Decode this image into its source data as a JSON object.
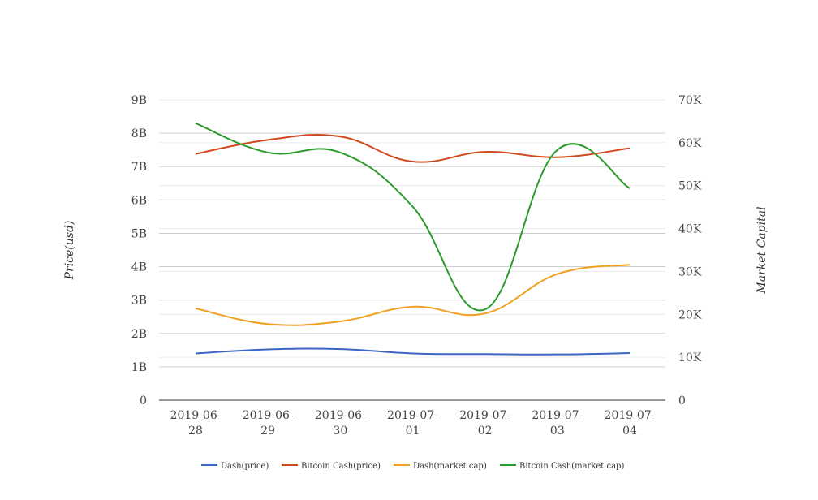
{
  "chart_data": {
    "type": "line",
    "categories": [
      [
        "2019-06-",
        "28"
      ],
      [
        "2019-06-",
        "29"
      ],
      [
        "2019-06-",
        "30"
      ],
      [
        "2019-07-",
        "01"
      ],
      [
        "2019-07-",
        "02"
      ],
      [
        "2019-07-",
        "03"
      ],
      [
        "2019-07-",
        "04"
      ]
    ],
    "left_axis": {
      "label": "Price(usd)",
      "range": [
        0,
        9
      ],
      "ticks": [
        "0",
        "1B",
        "2B",
        "3B",
        "4B",
        "5B",
        "6B",
        "7B",
        "8B",
        "9B"
      ]
    },
    "right_axis": {
      "label": "Market Capital",
      "range": [
        0,
        70
      ],
      "ticks": [
        "0",
        "10K",
        "20K",
        "30K",
        "40K",
        "50K",
        "60K",
        "70K"
      ]
    },
    "series": [
      {
        "name": "Dash(price)",
        "color": "#3b66c4",
        "axis": "left",
        "values": [
          1.4,
          1.52,
          1.53,
          1.4,
          1.38,
          1.37,
          1.41
        ]
      },
      {
        "name": "Bitcoin Cash(price)",
        "color": "#d14a1f",
        "axis": "left",
        "values": [
          7.38,
          7.8,
          7.9,
          7.15,
          7.44,
          7.28,
          7.55
        ]
      },
      {
        "name": "Dash(market cap)",
        "color": "#f0a020",
        "axis": "left",
        "values": [
          2.75,
          2.28,
          2.36,
          2.8,
          2.6,
          3.78,
          4.06
        ]
      },
      {
        "name": "Bitcoin Cash(market cap)",
        "color": "#2a9a2a",
        "axis": "left",
        "values": [
          8.3,
          7.42,
          7.42,
          5.8,
          2.72,
          7.5,
          6.35
        ]
      }
    ],
    "grid": true,
    "legend_position": "bottom"
  }
}
